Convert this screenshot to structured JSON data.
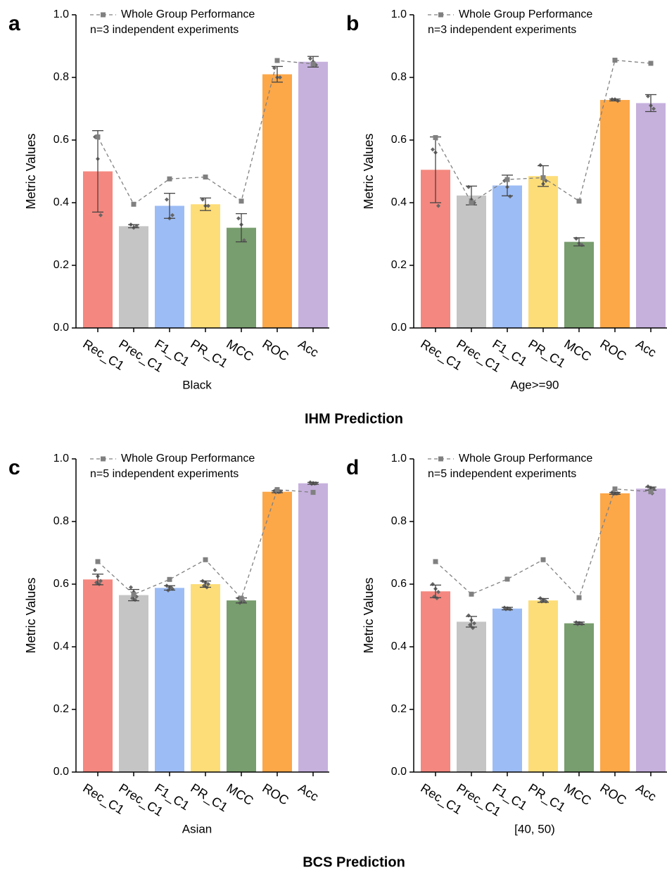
{
  "captions": [
    "IHM Prediction",
    "BCS Prediction"
  ],
  "chart_data": [
    {
      "type": "bar",
      "label": "a",
      "xlabel": "Black",
      "ylabel": "Metric Values",
      "note": "n=3 independent experiments",
      "categories": [
        "Rec_C1",
        "Prec_C1",
        "F1_C1",
        "PR_C1",
        "MCC",
        "ROC",
        "Acc"
      ],
      "colors": [
        "#f4877f",
        "#c5c5c5",
        "#9cbcf5",
        "#fddd78",
        "#789d6e",
        "#fca748",
        "#c6b1dd"
      ],
      "values": [
        0.5,
        0.325,
        0.39,
        0.395,
        0.32,
        0.81,
        0.85
      ],
      "errors": [
        0.13,
        0.005,
        0.04,
        0.02,
        0.045,
        0.025,
        0.017
      ],
      "points": [
        [
          0.61,
          0.54,
          0.36
        ],
        [
          0.33,
          0.32,
          0.325
        ],
        [
          0.41,
          0.35,
          0.36
        ],
        [
          0.41,
          0.39,
          0.39
        ],
        [
          0.35,
          0.33,
          0.28
        ],
        [
          0.83,
          0.8,
          0.8
        ],
        [
          0.86,
          0.85,
          0.84
        ]
      ],
      "line": {
        "name": "Whole Group Performance",
        "color": "#808080",
        "values": [
          0.61,
          0.395,
          0.476,
          0.482,
          0.405,
          0.854,
          0.843
        ]
      },
      "ylim": [
        0,
        1
      ],
      "yticks": [
        {
          "value": 0,
          "label": "0.0"
        },
        0.2,
        0.4,
        0.6,
        0.8,
        {
          "value": 1,
          "label": "1.0"
        }
      ]
    },
    {
      "type": "bar",
      "label": "b",
      "xlabel": "Age>=90",
      "ylabel": "Metric Values",
      "note": "n=3 independent experiments",
      "categories": [
        "Rec_C1",
        "Prec_C1",
        "F1_C1",
        "PR_C1",
        "MCC",
        "ROC",
        "Acc"
      ],
      "colors": [
        "#f4877f",
        "#c5c5c5",
        "#9cbcf5",
        "#fddd78",
        "#789d6e",
        "#fca748",
        "#c6b1dd"
      ],
      "values": [
        0.505,
        0.423,
        0.455,
        0.485,
        0.275,
        0.728,
        0.718
      ],
      "errors": [
        0.105,
        0.03,
        0.033,
        0.033,
        0.013,
        0.003,
        0.027
      ],
      "points": [
        [
          0.57,
          0.56,
          0.39
        ],
        [
          0.45,
          0.41,
          0.4
        ],
        [
          0.47,
          0.45,
          0.42
        ],
        [
          0.52,
          0.46,
          0.47
        ],
        [
          0.285,
          0.27,
          0.265
        ],
        [
          0.73,
          0.73,
          0.725
        ],
        [
          0.74,
          0.71,
          0.7
        ]
      ],
      "line": {
        "name": "Whole Group Performance",
        "color": "#808080",
        "values": [
          0.608,
          0.4,
          0.474,
          0.48,
          0.405,
          0.855,
          0.845
        ]
      },
      "ylim": [
        0,
        1
      ],
      "yticks": [
        {
          "value": 0,
          "label": "0.0"
        },
        0.2,
        0.4,
        0.6,
        0.8,
        {
          "value": 1,
          "label": "1.0"
        }
      ]
    },
    {
      "type": "bar",
      "label": "c",
      "xlabel": "Asian",
      "ylabel": "Metric Values",
      "note": "n=5 independent experiments",
      "categories": [
        "Rec_C1",
        "Prec_C1",
        "F1_C1",
        "PR_C1",
        "MCC",
        "ROC",
        "Acc"
      ],
      "colors": [
        "#f4877f",
        "#c5c5c5",
        "#9cbcf5",
        "#fddd78",
        "#789d6e",
        "#fca748",
        "#c6b1dd"
      ],
      "values": [
        0.615,
        0.565,
        0.588,
        0.6,
        0.548,
        0.895,
        0.922
      ],
      "errors": [
        0.017,
        0.018,
        0.007,
        0.01,
        0.008,
        0.003,
        0.003
      ],
      "points": [
        [
          0.645,
          0.625,
          0.61,
          0.605,
          0.6
        ],
        [
          0.59,
          0.575,
          0.56,
          0.555,
          0.55
        ],
        [
          0.595,
          0.59,
          0.585,
          0.58,
          0.59
        ],
        [
          0.61,
          0.605,
          0.6,
          0.595,
          0.59
        ],
        [
          0.555,
          0.55,
          0.545,
          0.54,
          0.55
        ],
        [
          0.898,
          0.896,
          0.895,
          0.893,
          0.894
        ],
        [
          0.925,
          0.923,
          0.922,
          0.92,
          0.921
        ]
      ],
      "line": {
        "name": "Whole Group Performance",
        "color": "#808080",
        "values": [
          0.672,
          0.567,
          0.615,
          0.678,
          0.555,
          0.902,
          0.893
        ]
      },
      "ylim": [
        0,
        1
      ],
      "yticks": [
        {
          "value": 0,
          "label": "0.0"
        },
        0.2,
        0.4,
        0.6,
        0.8,
        {
          "value": 1,
          "label": "1.0"
        }
      ]
    },
    {
      "type": "bar",
      "label": "d",
      "xlabel": "[40, 50)",
      "ylabel": "Metric Values",
      "note": "n=5 independent experiments",
      "categories": [
        "Rec_C1",
        "Prec_C1",
        "F1_C1",
        "PR_C1",
        "MCC",
        "ROC",
        "Acc"
      ],
      "colors": [
        "#f4877f",
        "#c5c5c5",
        "#9cbcf5",
        "#fddd78",
        "#789d6e",
        "#fca748",
        "#c6b1dd"
      ],
      "values": [
        0.577,
        0.48,
        0.522,
        0.548,
        0.475,
        0.89,
        0.905
      ],
      "errors": [
        0.02,
        0.017,
        0.004,
        0.006,
        0.004,
        0.003,
        0.005
      ],
      "points": [
        [
          0.6,
          0.585,
          0.575,
          0.56,
          0.555
        ],
        [
          0.5,
          0.485,
          0.475,
          0.47,
          0.46
        ],
        [
          0.525,
          0.523,
          0.52,
          0.52,
          0.522
        ],
        [
          0.555,
          0.55,
          0.545,
          0.545,
          0.548
        ],
        [
          0.478,
          0.476,
          0.473,
          0.472,
          0.475
        ],
        [
          0.893,
          0.89,
          0.89,
          0.888,
          0.889
        ],
        [
          0.912,
          0.908,
          0.905,
          0.9,
          0.89
        ]
      ],
      "line": {
        "name": "Whole Group Performance",
        "color": "#808080",
        "values": [
          0.672,
          0.568,
          0.616,
          0.678,
          0.557,
          0.904,
          0.895
        ]
      },
      "ylim": [
        0,
        1
      ],
      "yticks": [
        {
          "value": 0,
          "label": "0.0"
        },
        0.2,
        0.4,
        0.6,
        0.8,
        {
          "value": 1,
          "label": "1.0"
        }
      ]
    }
  ]
}
